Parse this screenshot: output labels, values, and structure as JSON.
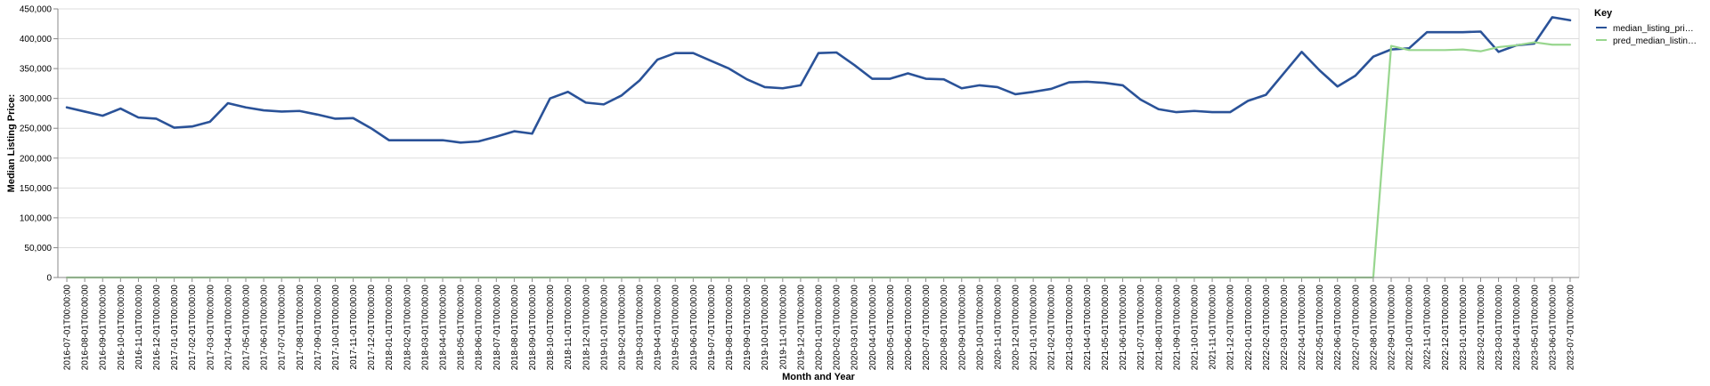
{
  "chart_data": {
    "type": "line",
    "title": "",
    "xlabel": "Month and Year",
    "ylabel": "Median Listing Price:",
    "ylim": [
      0,
      450000
    ],
    "y_ticks": [
      "0",
      "50,000",
      "100,000",
      "150,000",
      "200,000",
      "250,000",
      "300,000",
      "350,000",
      "400,000",
      "450,000"
    ],
    "y_tick_values": [
      0,
      50000,
      100000,
      150000,
      200000,
      250000,
      300000,
      350000,
      400000,
      450000
    ],
    "grid": true,
    "legend": {
      "title": "Key",
      "position": "top-right",
      "entries": [
        "median_listing_pri…",
        "pred_median_listin…"
      ]
    },
    "categories": [
      "2016-07-01T00:00:00",
      "2016-08-01T00:00:00",
      "2016-09-01T00:00:00",
      "2016-10-01T00:00:00",
      "2016-11-01T00:00:00",
      "2016-12-01T00:00:00",
      "2017-01-01T00:00:00",
      "2017-02-01T00:00:00",
      "2017-03-01T00:00:00",
      "2017-04-01T00:00:00",
      "2017-05-01T00:00:00",
      "2017-06-01T00:00:00",
      "2017-07-01T00:00:00",
      "2017-08-01T00:00:00",
      "2017-09-01T00:00:00",
      "2017-10-01T00:00:00",
      "2017-11-01T00:00:00",
      "2017-12-01T00:00:00",
      "2018-01-01T00:00:00",
      "2018-02-01T00:00:00",
      "2018-03-01T00:00:00",
      "2018-04-01T00:00:00",
      "2018-05-01T00:00:00",
      "2018-06-01T00:00:00",
      "2018-07-01T00:00:00",
      "2018-08-01T00:00:00",
      "2018-09-01T00:00:00",
      "2018-10-01T00:00:00",
      "2018-11-01T00:00:00",
      "2018-12-01T00:00:00",
      "2019-01-01T00:00:00",
      "2019-02-01T00:00:00",
      "2019-03-01T00:00:00",
      "2019-04-01T00:00:00",
      "2019-05-01T00:00:00",
      "2019-06-01T00:00:00",
      "2019-07-01T00:00:00",
      "2019-08-01T00:00:00",
      "2019-09-01T00:00:00",
      "2019-10-01T00:00:00",
      "2019-11-01T00:00:00",
      "2019-12-01T00:00:00",
      "2020-01-01T00:00:00",
      "2020-02-01T00:00:00",
      "2020-03-01T00:00:00",
      "2020-04-01T00:00:00",
      "2020-05-01T00:00:00",
      "2020-06-01T00:00:00",
      "2020-07-01T00:00:00",
      "2020-08-01T00:00:00",
      "2020-09-01T00:00:00",
      "2020-10-01T00:00:00",
      "2020-11-01T00:00:00",
      "2020-12-01T00:00:00",
      "2021-01-01T00:00:00",
      "2021-02-01T00:00:00",
      "2021-03-01T00:00:00",
      "2021-04-01T00:00:00",
      "2021-05-01T00:00:00",
      "2021-06-01T00:00:00",
      "2021-07-01T00:00:00",
      "2021-08-01T00:00:00",
      "2021-09-01T00:00:00",
      "2021-10-01T00:00:00",
      "2021-11-01T00:00:00",
      "2021-12-01T00:00:00",
      "2022-01-01T00:00:00",
      "2022-02-01T00:00:00",
      "2022-03-01T00:00:00",
      "2022-04-01T00:00:00",
      "2022-05-01T00:00:00",
      "2022-06-01T00:00:00",
      "2022-07-01T00:00:00",
      "2022-08-01T00:00:00",
      "2022-09-01T00:00:00",
      "2022-10-01T00:00:00",
      "2022-11-01T00:00:00",
      "2022-12-01T00:00:00",
      "2023-01-01T00:00:00",
      "2023-02-01T00:00:00",
      "2023-03-01T00:00:00",
      "2023-04-01T00:00:00",
      "2023-05-01T00:00:00",
      "2023-06-01T00:00:00",
      "2023-07-01T00:00:00"
    ],
    "series": [
      {
        "name": "median_listing_pri…",
        "color": "#2a5298",
        "values": [
          285000,
          278000,
          271000,
          283000,
          268000,
          266000,
          251000,
          253000,
          261000,
          292000,
          285000,
          280000,
          278000,
          279000,
          273000,
          266000,
          267000,
          250000,
          230000,
          230000,
          230000,
          230000,
          226000,
          228000,
          236000,
          245000,
          241000,
          300000,
          311000,
          293000,
          290000,
          305000,
          330000,
          365000,
          376000,
          376000,
          363000,
          350000,
          332000,
          319000,
          317000,
          322000,
          376000,
          377000,
          356000,
          333000,
          333000,
          342000,
          333000,
          332000,
          317000,
          322000,
          319000,
          307000,
          311000,
          316000,
          327000,
          328000,
          326000,
          322000,
          298000,
          282000,
          277000,
          279000,
          277000,
          277000,
          296000,
          306000,
          342000,
          378000,
          347000,
          320000,
          338000,
          370000,
          382000,
          384000,
          411000,
          411000,
          411000,
          412000,
          378000,
          389000,
          392000,
          436000,
          431000
        ]
      },
      {
        "name": "pred_median_listin…",
        "color": "#98d68e",
        "values": [
          0,
          0,
          0,
          0,
          0,
          0,
          0,
          0,
          0,
          0,
          0,
          0,
          0,
          0,
          0,
          0,
          0,
          0,
          0,
          0,
          0,
          0,
          0,
          0,
          0,
          0,
          0,
          0,
          0,
          0,
          0,
          0,
          0,
          0,
          0,
          0,
          0,
          0,
          0,
          0,
          0,
          0,
          0,
          0,
          0,
          0,
          0,
          0,
          0,
          0,
          0,
          0,
          0,
          0,
          0,
          0,
          0,
          0,
          0,
          0,
          0,
          0,
          0,
          0,
          0,
          0,
          0,
          0,
          0,
          0,
          0,
          0,
          0,
          0,
          388000,
          381000,
          381000,
          381000,
          382000,
          379000,
          386000,
          389000,
          394000,
          390000,
          390000
        ]
      }
    ]
  }
}
